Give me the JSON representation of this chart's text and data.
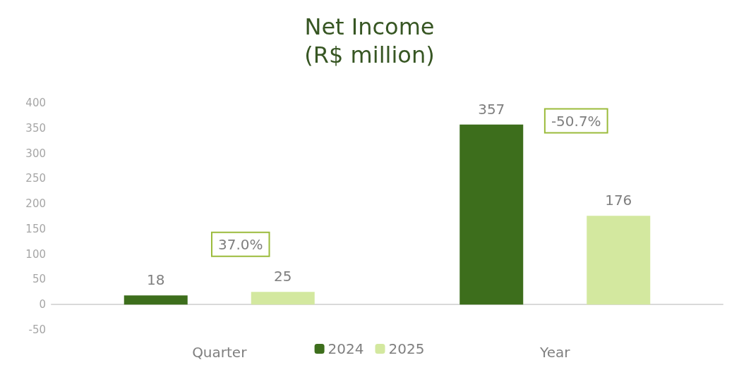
{
  "chart_data": {
    "type": "bar",
    "title": "Net Income\n(R$ million)",
    "categories": [
      "Quarter",
      "Year"
    ],
    "series": [
      {
        "name": "2024",
        "color": "#3d6e1c",
        "values": [
          18,
          357
        ]
      },
      {
        "name": "2025",
        "color": "#d3e89f",
        "values": [
          25,
          176
        ]
      }
    ],
    "ylim": [
      -50,
      400
    ],
    "yticks": [
      -50,
      0,
      50,
      100,
      150,
      200,
      250,
      300,
      350,
      400
    ],
    "legend": "bottom",
    "data_labels": true,
    "annotations": [
      "37.0%",
      "-50.7%"
    ]
  }
}
